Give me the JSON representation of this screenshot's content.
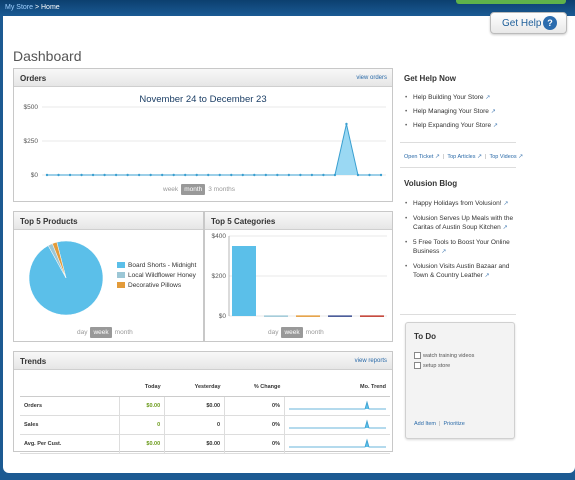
{
  "breadcrumb": {
    "store": "My Store",
    "separator": " > ",
    "current": "Home"
  },
  "help_button": {
    "label": "Get Help",
    "icon": "question-icon"
  },
  "page_title": "Dashboard",
  "orders": {
    "title": "Orders",
    "link": "view orders",
    "range": "November 24 to December 23",
    "periods": [
      "week",
      "month",
      "3 months"
    ],
    "selected_period": "month"
  },
  "top_products": {
    "title": "Top 5 Products",
    "legend": [
      "Board Shorts - Midnight",
      "Local Wildflower Honey",
      "Decorative Pillows"
    ],
    "periods": [
      "day",
      "week",
      "month"
    ],
    "selected_period": "week"
  },
  "top_categories": {
    "title": "Top 5 Categories",
    "periods": [
      "day",
      "week",
      "month"
    ],
    "selected_period": "week"
  },
  "trends": {
    "title": "Trends",
    "link": "view reports",
    "headers": [
      "",
      "Today",
      "Yesterday",
      "% Change",
      "Mo. Trend"
    ],
    "rows": [
      {
        "label": "Orders",
        "today": "$0.00",
        "yesterday": "$0.00",
        "change": "0%"
      },
      {
        "label": "Sales",
        "today": "0",
        "yesterday": "0",
        "change": "0%"
      },
      {
        "label": "Avg. Per Cust.",
        "today": "$0.00",
        "yesterday": "$0.00",
        "change": "0%"
      }
    ]
  },
  "help_now": {
    "title": "Get Help Now",
    "items": [
      "Help Building Your Store",
      "Help Managing Your Store",
      "Help Expanding Your Store"
    ],
    "links": [
      "Open Ticket",
      "Top Articles",
      "Top Videos"
    ]
  },
  "blog": {
    "title": "Volusion Blog",
    "items": [
      "Happy Holidays from Volusion!",
      "Volusion Serves Up Meals with the Caritas of Austin Soup Kitchen",
      "5 Free Tools to Boost Your Online Business",
      "Volusion Visits Austin Bazaar and Town & Country Leather"
    ]
  },
  "todo": {
    "title": "To Do",
    "items": [
      "watch training videos",
      "setup store"
    ],
    "add_label": "Add Item",
    "prioritize_label": "Prioritize"
  },
  "colors": {
    "accent": "#5bbfe9",
    "link": "#2a6aa8",
    "green": "#6a9a1a",
    "header_blue": "#1c5a92"
  },
  "chart_data": [
    {
      "type": "area",
      "title": "November 24 to December 23",
      "y_ticks": [
        "$500",
        "$250",
        "$0"
      ],
      "ylim": [
        0,
        500
      ],
      "x": [
        1,
        2,
        3,
        4,
        5,
        6,
        7,
        8,
        9,
        10,
        11,
        12,
        13,
        14,
        15,
        16,
        17,
        18,
        19,
        20,
        21,
        22,
        23,
        24,
        25,
        26,
        27,
        28,
        29,
        30
      ],
      "values": [
        0,
        0,
        0,
        0,
        0,
        0,
        0,
        0,
        0,
        0,
        0,
        0,
        0,
        0,
        0,
        0,
        0,
        0,
        0,
        0,
        0,
        0,
        0,
        0,
        0,
        0,
        375,
        0,
        0,
        0
      ]
    },
    {
      "type": "pie",
      "labels": [
        "Board Shorts - Midnight",
        "Local Wildflower Honey",
        "Decorative Pillows"
      ],
      "values": [
        96,
        2,
        2
      ],
      "colors": [
        "#5bbfe9",
        "#9cc7d6",
        "#e39b3a"
      ]
    },
    {
      "type": "bar",
      "y_ticks": [
        "$400",
        "$200",
        "$0"
      ],
      "ylim": [
        0,
        400
      ],
      "values": [
        350,
        3,
        3,
        3,
        3
      ],
      "colors": [
        "#5bbfe9",
        "#9cc7d6",
        "#e39b3a",
        "#3a4d8f",
        "#c0392b"
      ]
    }
  ]
}
